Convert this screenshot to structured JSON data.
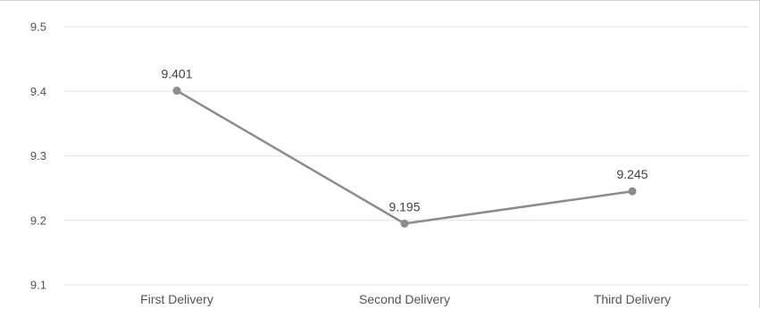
{
  "chart_data": {
    "type": "line",
    "categories": [
      "First Delivery",
      "Second Delivery",
      "Third Delivery"
    ],
    "series": [
      {
        "values": [
          9.401,
          9.195,
          9.245
        ]
      }
    ],
    "data_labels": [
      "9.401",
      "9.195",
      "9.245"
    ],
    "y_ticks": [
      "9.1",
      "9.2",
      "9.3",
      "9.4",
      "9.5"
    ],
    "ylim": [
      9.1,
      9.5
    ],
    "grid": true,
    "legend": "none",
    "line_color": "#8c8c8c",
    "marker_color": "#8c8c8c"
  }
}
